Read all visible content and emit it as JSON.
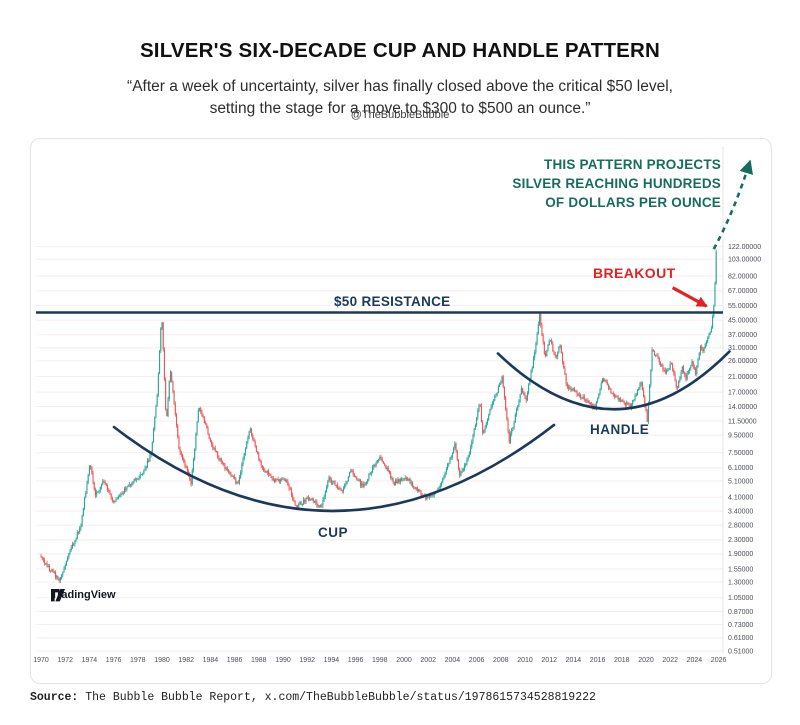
{
  "header": {
    "title": "SILVER'S SIX-DECADE CUP AND HANDLE PATTERN",
    "quote_line1": "“After a week of uncertainty, silver has finally closed above the critical $50 level,",
    "quote_line2": "setting the stage for a move to $300 to $500 an ounce.”",
    "attribution": "@TheBubbleBubble"
  },
  "watermark": {
    "brand": "TradingView"
  },
  "footer": {
    "source_label": "Source:",
    "source_text": " The Bubble Bubble Report, x.com/TheBubbleBubble/status/1978615734528819222"
  },
  "chart_data": {
    "type": "candlestick",
    "symbol_description": "Silver price, ~1970-2025, log scale",
    "y_scale": "log",
    "x_domain": [
      1970,
      2026.5
    ],
    "x_tick_years": [
      1970,
      1972,
      1974,
      1976,
      1978,
      1980,
      1982,
      1984,
      1986,
      1988,
      1990,
      1992,
      1994,
      1996,
      1998,
      2000,
      2002,
      2004,
      2006,
      2008,
      2010,
      2012,
      2014,
      2016,
      2018,
      2020,
      2022,
      2024,
      2026
    ],
    "y_tick_labels": [
      "122.00000",
      "103.00000",
      "82.00000",
      "67.00000",
      "55.00000",
      "45.00000",
      "37.00000",
      "31.00000",
      "26.00000",
      "21.00000",
      "17.00000",
      "14.00000",
      "11.50000",
      "9.50000",
      "7.50000",
      "6.10000",
      "5.10000",
      "4.10000",
      "3.40000",
      "2.80000",
      "2.30000",
      "1.90000",
      "1.55000",
      "1.30000",
      "1.05000",
      "0.87000",
      "0.73000",
      "0.61000",
      "0.51000"
    ],
    "series_anchors_year_price": [
      [
        1970.0,
        1.85
      ],
      [
        1970.6,
        1.62
      ],
      [
        1971.6,
        1.32
      ],
      [
        1972.5,
        1.95
      ],
      [
        1973.4,
        2.85
      ],
      [
        1974.15,
        6.55
      ],
      [
        1974.6,
        4.25
      ],
      [
        1975.3,
        5.1
      ],
      [
        1976.1,
        3.85
      ],
      [
        1977.3,
        4.8
      ],
      [
        1978.5,
        5.6
      ],
      [
        1979.2,
        7.4
      ],
      [
        1979.7,
        16.5
      ],
      [
        1980.07,
        49.2
      ],
      [
        1980.45,
        11.2
      ],
      [
        1980.78,
        23.5
      ],
      [
        1981.5,
        8.1
      ],
      [
        1982.5,
        5.0
      ],
      [
        1983.15,
        14.2
      ],
      [
        1984.3,
        8.0
      ],
      [
        1985.5,
        5.8
      ],
      [
        1986.4,
        4.9
      ],
      [
        1987.35,
        10.6
      ],
      [
        1988.3,
        6.2
      ],
      [
        1989.5,
        5.1
      ],
      [
        1990.3,
        5.3
      ],
      [
        1991.2,
        3.6
      ],
      [
        1992.3,
        4.1
      ],
      [
        1993.2,
        3.55
      ],
      [
        1993.9,
        5.3
      ],
      [
        1995.0,
        4.4
      ],
      [
        1995.7,
        6.0
      ],
      [
        1996.7,
        4.7
      ],
      [
        1998.1,
        7.25
      ],
      [
        1999.3,
        4.95
      ],
      [
        2000.2,
        5.4
      ],
      [
        2001.85,
        4.05
      ],
      [
        2003.0,
        4.55
      ],
      [
        2004.3,
        8.25
      ],
      [
        2004.7,
        5.6
      ],
      [
        2005.4,
        6.9
      ],
      [
        2006.37,
        14.8
      ],
      [
        2006.6,
        9.7
      ],
      [
        2007.2,
        13.2
      ],
      [
        2008.2,
        20.7
      ],
      [
        2008.8,
        8.8
      ],
      [
        2009.8,
        17.5
      ],
      [
        2010.2,
        15.6
      ],
      [
        2010.95,
        30.5
      ],
      [
        2011.3,
        49.0
      ],
      [
        2011.75,
        26.5
      ],
      [
        2012.15,
        35.0
      ],
      [
        2012.6,
        27.0
      ],
      [
        2013.0,
        32.0
      ],
      [
        2013.55,
        18.5
      ],
      [
        2014.5,
        16.5
      ],
      [
        2015.9,
        13.65
      ],
      [
        2016.55,
        20.5
      ],
      [
        2017.4,
        16.1
      ],
      [
        2018.8,
        13.95
      ],
      [
        2019.7,
        19.6
      ],
      [
        2020.2,
        11.7
      ],
      [
        2020.6,
        29.3
      ],
      [
        2021.1,
        27.0
      ],
      [
        2021.7,
        22.0
      ],
      [
        2022.2,
        25.5
      ],
      [
        2022.65,
        17.7
      ],
      [
        2023.1,
        24.0
      ],
      [
        2023.4,
        20.8
      ],
      [
        2023.9,
        25.3
      ],
      [
        2024.2,
        22.2
      ],
      [
        2024.6,
        32.0
      ],
      [
        2024.85,
        29.5
      ],
      [
        2025.1,
        34.0
      ],
      [
        2025.45,
        39.5
      ],
      [
        2025.65,
        48.5
      ],
      [
        2025.78,
        66.0
      ],
      [
        2025.88,
        112.0
      ]
    ],
    "bar_step_years": 0.1,
    "seed": 5,
    "colors": {
      "up": "#26a69a",
      "down": "#ef5350",
      "navy_annotation": "#1a3a5c",
      "green_annotation": "#176d5d",
      "red_annotation": "#e02424",
      "gridline": "#f5eeee",
      "axis_text": "#4a4e57",
      "axis_line": "#e4e4e6"
    },
    "resistance": {
      "level": 50,
      "label": "$50 RESISTANCE"
    },
    "annotations": {
      "projection_lines": [
        "THIS PATTERN PROJECTS",
        "SILVER REACHING HUNDREDS",
        "OF DOLLARS PER OUNCE"
      ],
      "breakout_label": "BREAKOUT",
      "cup_label": "CUP",
      "handle_label": "HANDLE",
      "cup_arc": {
        "from": [
          1976.03,
          10.6
        ],
        "control": [
          1994.2,
          1.075
        ],
        "to": [
          2012.4,
          10.9
        ]
      },
      "handle_arc": {
        "from": [
          2007.76,
          28.7
        ],
        "control": [
          2017.5,
          6.25
        ],
        "to": [
          2026.9,
          29.5
        ]
      },
      "breakout_arrow": {
        "from": [
          2022.2,
          70.0
        ],
        "to": [
          2025.0,
          54.5
        ]
      },
      "projection_arrow": {
        "from": [
          2025.6,
          118.0
        ],
        "control": [
          2027.3,
          197.0
        ],
        "to": [
          2028.6,
          389.0
        ]
      }
    }
  }
}
